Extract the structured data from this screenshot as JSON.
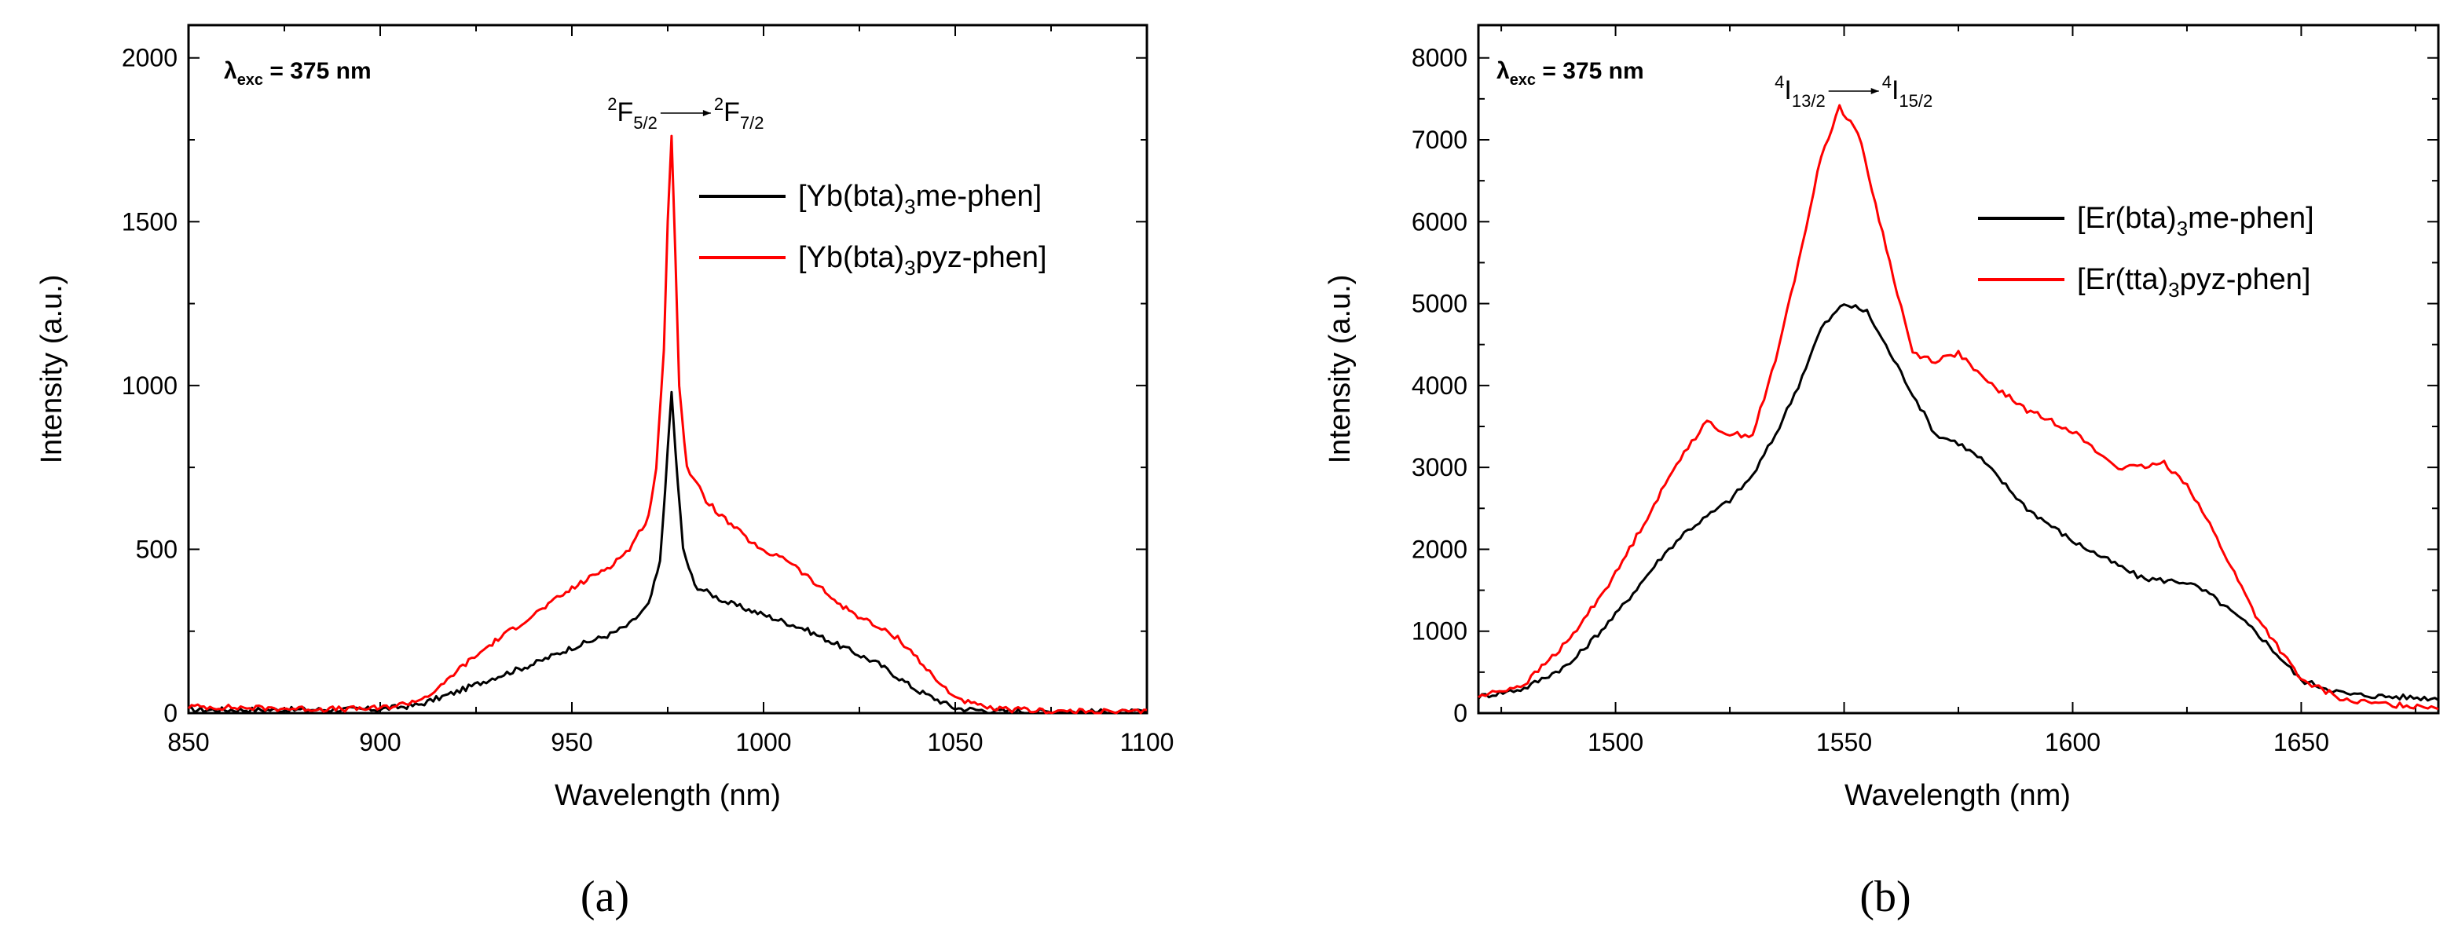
{
  "chart_data": [
    {
      "type": "line",
      "panel_label": "(a)",
      "xlabel": "Wavelength (nm)",
      "ylabel": "Intensity (a.u.)",
      "xlim": [
        850,
        1100
      ],
      "ylim": [
        0,
        2100
      ],
      "xticks": [
        850,
        900,
        950,
        1000,
        1050,
        1100
      ],
      "yticks": [
        0,
        500,
        1000,
        1500,
        2000
      ],
      "excitation": {
        "lambda": "λ",
        "sub": "exc",
        "value": " = 375 nm"
      },
      "transition": {
        "from_sup": "2",
        "from_base": "F",
        "from_sub": "5/2",
        "to_sup": "2",
        "to_base": "F",
        "to_sub": "7/2",
        "x": 976
      },
      "legend_position": "upper-right",
      "series": [
        {
          "name": "[Yb(bta)3me-phen]",
          "legend": {
            "pre": "[Yb(bta)",
            "sub": "3",
            "post": "me-phen]"
          },
          "color": "#000000",
          "x": [
            850,
            880,
            900,
            910,
            920,
            930,
            940,
            950,
            960,
            965,
            970,
            973,
            975,
            976,
            977,
            979,
            982,
            990,
            1000,
            1010,
            1020,
            1030,
            1040,
            1050,
            1060,
            1080,
            1100
          ],
          "y": [
            10,
            10,
            12,
            25,
            65,
            110,
            150,
            200,
            240,
            270,
            330,
            460,
            800,
            980,
            800,
            500,
            390,
            340,
            300,
            260,
            205,
            150,
            70,
            15,
            6,
            4,
            3
          ]
        },
        {
          "name": "[Yb(bta)3pyz-phen]",
          "legend": {
            "pre": "[Yb(bta)",
            "sub": "3",
            "post": "pyz-phen]"
          },
          "color": "#ff0000",
          "x": [
            850,
            870,
            890,
            900,
            905,
            910,
            915,
            920,
            930,
            940,
            950,
            960,
            965,
            970,
            972,
            974,
            975,
            976,
            977,
            978,
            980,
            985,
            990,
            1000,
            1005,
            1010,
            1020,
            1030,
            1035,
            1040,
            1045,
            1050,
            1055,
            1060,
            1080,
            1100
          ],
          "y": [
            20,
            15,
            12,
            15,
            25,
            40,
            70,
            130,
            220,
            300,
            380,
            450,
            500,
            600,
            750,
            1100,
            1500,
            1770,
            1400,
            1000,
            750,
            650,
            590,
            490,
            480,
            430,
            330,
            260,
            230,
            170,
            100,
            50,
            25,
            12,
            5,
            3
          ]
        }
      ]
    },
    {
      "type": "line",
      "panel_label": "(b)",
      "xlabel": "Wavelength (nm)",
      "ylabel": "Intensity (a.u.)",
      "xlim": [
        1470,
        1680
      ],
      "ylim": [
        0,
        8400
      ],
      "xticks": [
        1500,
        1550,
        1600,
        1650
      ],
      "yticks": [
        0,
        1000,
        2000,
        3000,
        4000,
        5000,
        6000,
        7000,
        8000
      ],
      "excitation": {
        "lambda": "λ",
        "sub": "exc",
        "value": " = 375 nm"
      },
      "transition": {
        "from_sup": "4",
        "from_base": "I",
        "from_sub": "13/2",
        "to_sup": "4",
        "to_base": "I",
        "to_sub": "15/2",
        "x": 1549
      },
      "legend_position": "right",
      "series": [
        {
          "name": "[Er(bta)3me-phen]",
          "legend": {
            "pre": "[Er(bta)",
            "sub": "3",
            "post": "me-phen]"
          },
          "color": "#000000",
          "x": [
            1470,
            1480,
            1490,
            1500,
            1510,
            1515,
            1520,
            1525,
            1530,
            1535,
            1540,
            1545,
            1550,
            1555,
            1560,
            1565,
            1570,
            1575,
            1580,
            1590,
            1600,
            1610,
            1615,
            1620,
            1625,
            1630,
            1640,
            1650,
            1660,
            1670,
            1680
          ],
          "y": [
            200,
            300,
            600,
            1200,
            1900,
            2200,
            2400,
            2600,
            2900,
            3400,
            4000,
            4700,
            5000,
            4900,
            4400,
            3900,
            3400,
            3300,
            3100,
            2500,
            2100,
            1800,
            1650,
            1620,
            1600,
            1450,
            1000,
            400,
            230,
            200,
            180
          ]
        },
        {
          "name": "[Er(tta)3pyz-phen]",
          "legend": {
            "pre": "[Er(tta)",
            "sub": "3",
            "post": "pyz-phen]"
          },
          "color": "#ff0000",
          "x": [
            1470,
            1480,
            1490,
            1500,
            1510,
            1515,
            1520,
            1525,
            1530,
            1535,
            1540,
            1545,
            1549,
            1553,
            1560,
            1565,
            1570,
            1575,
            1580,
            1590,
            1600,
            1605,
            1610,
            1615,
            1620,
            1625,
            1630,
            1640,
            1650,
            1660,
            1670,
            1680
          ],
          "y": [
            200,
            350,
            900,
            1700,
            2700,
            3200,
            3550,
            3400,
            3400,
            4300,
            5500,
            6800,
            7400,
            7100,
            5500,
            4400,
            4300,
            4400,
            4100,
            3700,
            3450,
            3200,
            3000,
            3000,
            3050,
            2800,
            2300,
            1200,
            400,
            150,
            100,
            80
          ]
        }
      ]
    }
  ]
}
